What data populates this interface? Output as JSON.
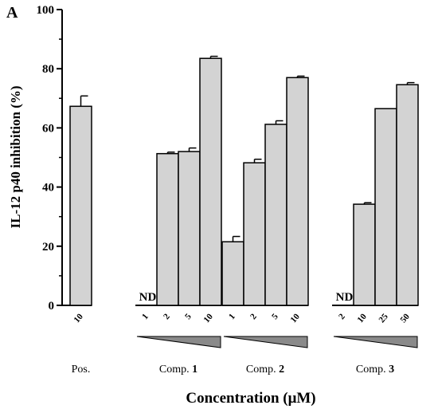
{
  "chart_data": {
    "type": "bar",
    "panel_label": "A",
    "ylabel": "IL-12 p40 inhibition (%)",
    "xlabel": "Concentration (μM)",
    "ylim": [
      0,
      100
    ],
    "yticks": [
      0,
      20,
      40,
      60,
      80,
      100
    ],
    "grid": false,
    "nd_label": "ND",
    "groups": [
      {
        "label_prefix": "Pos.",
        "label_number": "",
        "gradient": false,
        "bars": [
          {
            "x": "10",
            "value": 67.3,
            "error": 3.5
          }
        ]
      },
      {
        "label_prefix": "Comp. ",
        "label_number": "1",
        "gradient": true,
        "bars": [
          {
            "x": "1",
            "value": null,
            "error": 0,
            "nd": true
          },
          {
            "x": "2",
            "value": 51.3,
            "error": 0.5
          },
          {
            "x": "5",
            "value": 52.0,
            "error": 1.2
          },
          {
            "x": "10",
            "value": 83.5,
            "error": 0.7
          }
        ]
      },
      {
        "label_prefix": "Comp. ",
        "label_number": "2",
        "gradient": true,
        "bars": [
          {
            "x": "1",
            "value": 21.5,
            "error": 1.8
          },
          {
            "x": "2",
            "value": 48.2,
            "error": 1.2
          },
          {
            "x": "5",
            "value": 61.2,
            "error": 1.2
          },
          {
            "x": "10",
            "value": 77.0,
            "error": 0.5
          }
        ]
      },
      {
        "label_prefix": "Comp. ",
        "label_number": "3",
        "gradient": true,
        "bars": [
          {
            "x": "2",
            "value": null,
            "error": 0,
            "nd": true
          },
          {
            "x": "10",
            "value": 34.2,
            "error": 0.5
          },
          {
            "x": "25",
            "value": 66.5,
            "error": 0
          },
          {
            "x": "50",
            "value": 74.6,
            "error": 0.7
          }
        ]
      }
    ],
    "colors": {
      "bar_fill": "#d3d3d3",
      "bar_stroke": "#000000",
      "wedge_fill": "#8a8a8a"
    }
  }
}
